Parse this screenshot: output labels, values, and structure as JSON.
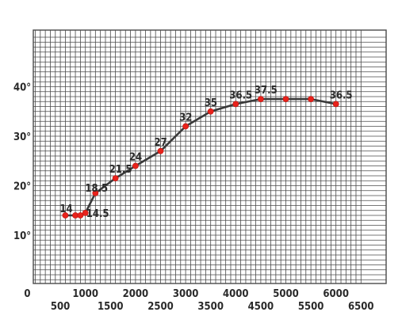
{
  "chart_data": {
    "type": "line",
    "title": "",
    "xlabel": "",
    "ylabel": "",
    "xlim": [
      0,
      6500
    ],
    "ylim": [
      0,
      50
    ],
    "grid": true,
    "y_ticks": [
      {
        "value": 10,
        "label": "10°"
      },
      {
        "value": 20,
        "label": "20°"
      },
      {
        "value": 30,
        "label": "30°"
      },
      {
        "value": 40,
        "label": "40°"
      }
    ],
    "x_ticks": [
      {
        "value": 0,
        "label": "0"
      },
      {
        "value": 500,
        "label": "500"
      },
      {
        "value": 1000,
        "label": "1000"
      },
      {
        "value": 1500,
        "label": "1500"
      },
      {
        "value": 2000,
        "label": "2000"
      },
      {
        "value": 2500,
        "label": "2500"
      },
      {
        "value": 3000,
        "label": "3000"
      },
      {
        "value": 3500,
        "label": "3500"
      },
      {
        "value": 4000,
        "label": "4000"
      },
      {
        "value": 4500,
        "label": "4500"
      },
      {
        "value": 5000,
        "label": "5000"
      },
      {
        "value": 5500,
        "label": "5500"
      },
      {
        "value": 6000,
        "label": "6000"
      },
      {
        "value": 6500,
        "label": "6500"
      }
    ],
    "series": [
      {
        "points": [
          {
            "x": 600,
            "y": 14,
            "label": "14"
          },
          {
            "x": 800,
            "y": 14,
            "label": ""
          },
          {
            "x": 900,
            "y": 14,
            "label": ""
          },
          {
            "x": 1000,
            "y": 14.5,
            "label": "14.5"
          },
          {
            "x": 1200,
            "y": 18.5,
            "label": "18.5"
          },
          {
            "x": 1600,
            "y": 21.5,
            "label": "21.5"
          },
          {
            "x": 2000,
            "y": 24,
            "label": "24"
          },
          {
            "x": 2500,
            "y": 27,
            "label": "27"
          },
          {
            "x": 3000,
            "y": 32,
            "label": "32"
          },
          {
            "x": 3500,
            "y": 35,
            "label": "35"
          },
          {
            "x": 4000,
            "y": 36.5,
            "label": "36.5"
          },
          {
            "x": 4500,
            "y": 37.5,
            "label": "37.5"
          },
          {
            "x": 5000,
            "y": 37.5,
            "label": ""
          },
          {
            "x": 5500,
            "y": 37.5,
            "label": ""
          },
          {
            "x": 6000,
            "y": 36.5,
            "label": "36.5"
          }
        ]
      }
    ],
    "colors": {
      "line": "#3a3a3a",
      "marker": "#e8221b",
      "grid": "#4a4a4a",
      "text": "#2a2a2a"
    }
  }
}
